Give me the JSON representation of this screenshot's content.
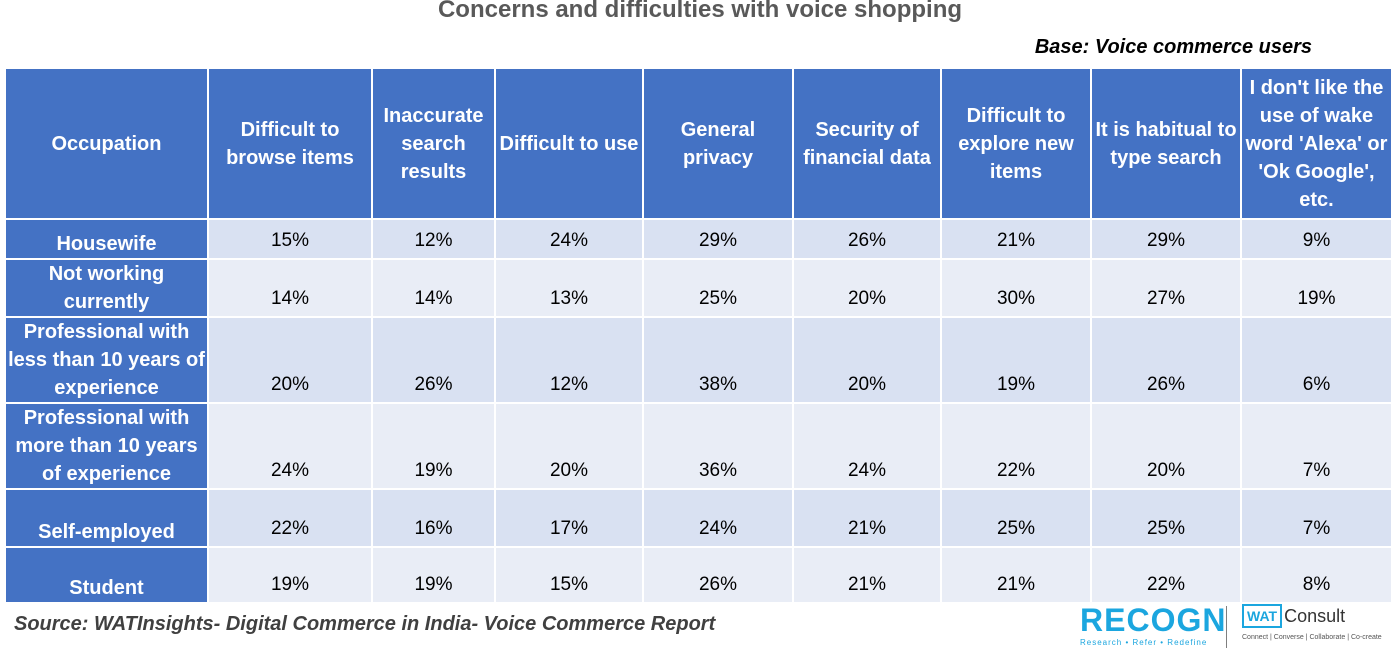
{
  "title": "Concerns and difficulties with voice shopping",
  "base_note": "Base: Voice commerce users",
  "source": "Source: WATInsights- Digital Commerce in India- Voice Commerce Report",
  "logos": {
    "recogn": "RECOGN",
    "recogn_tagline": "Research • Refer • Redefine",
    "wat_box": "WAT",
    "wat_text": "Consult",
    "wat_tagline": "Connect | Converse | Collaborate | Co-create"
  },
  "colors": {
    "header_bg": "#4472C4",
    "row_bg_odd": "#D9E1F2",
    "row_bg_even": "#E9EDF6",
    "brand": "#1BA6DF"
  },
  "chart_data": {
    "type": "table",
    "title": "Concerns and difficulties with voice shopping",
    "columns": [
      "Occupation",
      "Difficult to browse items",
      "Inaccurate search results",
      "Difficult to use",
      "General privacy",
      "Security of financial data",
      "Difficult to explore new items",
      "It is habitual to type search",
      "I don't like the use of wake word 'Alexa' or 'Ok Google', etc."
    ],
    "rows": [
      {
        "label": "Housewife",
        "values": [
          "15%",
          "12%",
          "24%",
          "29%",
          "26%",
          "21%",
          "29%",
          "9%"
        ]
      },
      {
        "label": "Not working currently",
        "values": [
          "14%",
          "14%",
          "13%",
          "25%",
          "20%",
          "30%",
          "27%",
          "19%"
        ]
      },
      {
        "label": "Professional with less than 10 years of experience",
        "values": [
          "20%",
          "26%",
          "12%",
          "38%",
          "20%",
          "19%",
          "26%",
          "6%"
        ]
      },
      {
        "label": "Professional with more than 10 years of experience",
        "values": [
          "24%",
          "19%",
          "20%",
          "36%",
          "24%",
          "22%",
          "20%",
          "7%"
        ]
      },
      {
        "label": "Self-employed",
        "values": [
          "22%",
          "16%",
          "17%",
          "24%",
          "21%",
          "25%",
          "25%",
          "7%"
        ]
      },
      {
        "label": "Student",
        "values": [
          "19%",
          "19%",
          "15%",
          "26%",
          "21%",
          "21%",
          "22%",
          "8%"
        ]
      }
    ]
  }
}
